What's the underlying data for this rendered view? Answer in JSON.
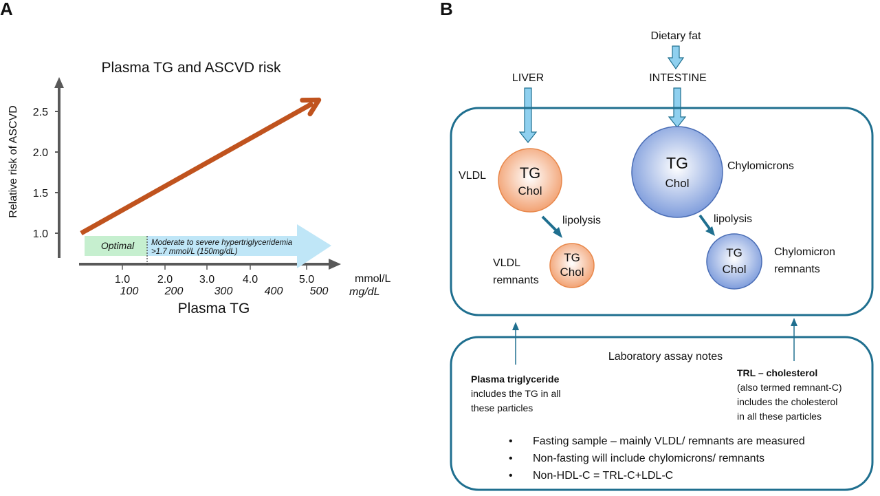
{
  "panel_a": {
    "letter": "A",
    "title": "Plasma TG and ASCVD risk",
    "ylabel": "Relative risk of ASCVD",
    "yticks": [
      "2.5",
      "2.0",
      "1.5",
      "1.0"
    ],
    "xticks_mmol": [
      "1.0",
      "2.0",
      "3.0",
      "4.0",
      "5.0"
    ],
    "xticks_mgdl": [
      "100",
      "200",
      "300",
      "400",
      "500"
    ],
    "unit_mmol": "mmol/L",
    "unit_mgdl": "mg/dL",
    "xlabel": "Plasma TG",
    "optimal_label": "Optimal",
    "hyper_label_1": "Moderate to severe hypertriglyceridemia",
    "hyper_label_2": ">1.7 mmol/L (150mg/dL)",
    "colors": {
      "risk_arrow": "#c0531e",
      "optimal": "#c6efcf",
      "hyper": "#bfe6f7",
      "axis": "#595959"
    }
  },
  "chart_data": {
    "type": "line",
    "title": "Plasma TG and ASCVD risk",
    "xlabel": "Plasma TG",
    "ylabel": "Relative risk of ASCVD",
    "ylim": [
      0.7,
      2.8
    ],
    "yticks": [
      1.0,
      1.5,
      2.0,
      2.5
    ],
    "x_units": [
      "mmol/L",
      "mg/dL"
    ],
    "series": [
      {
        "x": [
          0.2,
          5.4
        ],
        "y": [
          1.0,
          2.6
        ]
      }
    ],
    "grid": false
  },
  "panel_b": {
    "letter": "B",
    "dietary_fat": "Dietary fat",
    "liver": "LIVER",
    "intestine": "INTESTINE",
    "vldl": "VLDL",
    "chylomicrons": "Chylomicrons",
    "vldl_remnants_1": "VLDL",
    "vldl_remnants_2": "remnants",
    "chylo_remnants_1": "Chylomicron",
    "chylo_remnants_2": "remnants",
    "lipolysis": "lipolysis",
    "tg": "TG",
    "chol": "Chol",
    "notes_title": "Laboratory assay notes",
    "plasma_tg_title": "Plasma triglyceride",
    "plasma_tg_lines": [
      "includes the TG in all",
      "these particles"
    ],
    "trl_title": "TRL – cholesterol",
    "trl_lines": [
      "(also termed remnant-C)",
      "includes the cholesterol",
      "in all these particles"
    ],
    "bullets": [
      "Fasting sample – mainly VLDL/ remnants are measured",
      "Non-fasting will include chylomicrons/ remnants",
      "Non-HDL-C = TRL-C+LDL-C"
    ],
    "colors": {
      "box": "#1f6f8f",
      "orange": "#f2a273",
      "blue": "#8fa9e0",
      "flow_arrow": "#8fd0ef"
    }
  }
}
